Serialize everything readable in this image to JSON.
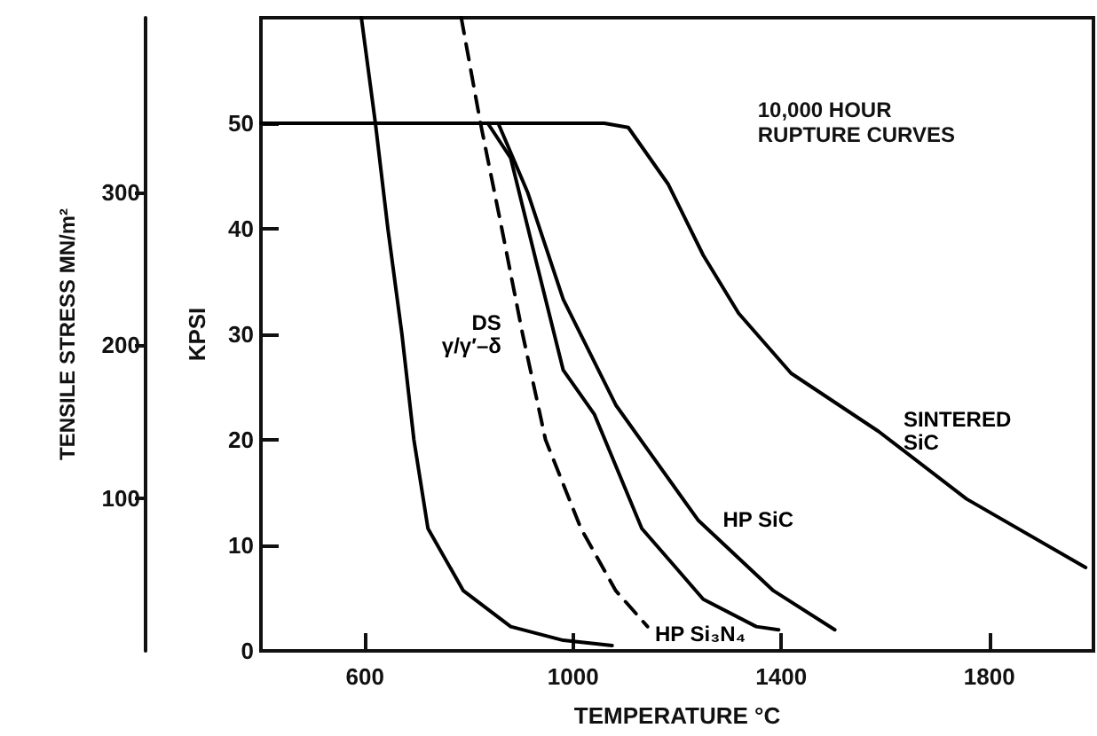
{
  "chart_data": {
    "type": "line",
    "xlabel": "TEMPERATURE °C",
    "ylabel": "KPSI",
    "y2label": "TENSILE STRESS MN/m²",
    "annotations": [
      "10,000 HOUR\nRUPTURE CURVES"
    ],
    "xlim": [
      400,
      2000
    ],
    "xticks": [
      600,
      1000,
      1400,
      1800
    ],
    "ylim": [
      0,
      60
    ],
    "yticks": [
      0,
      10,
      20,
      30,
      40,
      50
    ],
    "y2lim": [
      0,
      414
    ],
    "y2ticks": [
      100,
      200,
      300
    ],
    "grid": false,
    "legend": false,
    "marker": "none",
    "series": [
      {
        "color": "#000000",
        "line_style": "solid",
        "x": [
          593,
          620,
          644,
          671,
          694,
          721,
          789,
          880,
          981,
          1075
        ],
        "values": [
          60,
          50,
          40,
          30,
          20,
          11.6,
          5.7,
          2.3,
          1.0,
          0.5
        ]
      },
      {
        "name": "DS\nγ/γ′–δ",
        "color": "#000000",
        "line_style": "dashed",
        "x": [
          785,
          822,
          863,
          903,
          947,
          1015,
          1082,
          1143
        ],
        "values": [
          60,
          50,
          40,
          30,
          20,
          11.6,
          5.7,
          2.3
        ]
      },
      {
        "name": "HP Si₃N₄",
        "color": "#000000",
        "line_style": "solid",
        "x": [
          400,
          836,
          880,
          930,
          981,
          1041,
          1132,
          1250,
          1352,
          1395
        ],
        "values": [
          50,
          50,
          46.7,
          36.7,
          26.6,
          22.4,
          11.6,
          4.9,
          2.3,
          2
        ]
      },
      {
        "name": "HP SiC",
        "color": "#000000",
        "line_style": "solid",
        "x": [
          400,
          856,
          913,
          981,
          1082,
          1240,
          1385,
          1503
        ],
        "values": [
          50,
          50,
          43.4,
          33.3,
          23.3,
          12.4,
          5.7,
          2
        ]
      },
      {
        "name": "SINTERED\nSiC",
        "color": "#000000",
        "line_style": "solid",
        "x": [
          400,
          1060,
          1106,
          1183,
          1250,
          1318,
          1419,
          1587,
          1756,
          1985
        ],
        "values": [
          50,
          50,
          49.6,
          44.2,
          37.5,
          32,
          26.3,
          20.8,
          14.4,
          7.9
        ]
      }
    ]
  }
}
